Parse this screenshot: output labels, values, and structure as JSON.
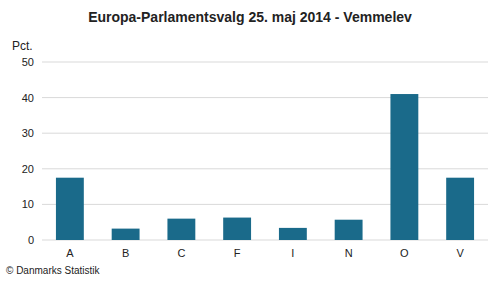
{
  "chart_data": {
    "type": "bar",
    "title": "Europa-Parlamentsvalg 25. maj 2014 - Vemmelev",
    "ylabel": "Pct.",
    "footer": "© Danmarks Statistik",
    "categories": [
      "A",
      "B",
      "C",
      "F",
      "I",
      "N",
      "O",
      "V"
    ],
    "values": [
      17.5,
      3.2,
      6.0,
      6.3,
      3.4,
      5.7,
      41.0,
      17.5
    ],
    "color": "#1a6a8a",
    "ylim": [
      0,
      50
    ],
    "yticks": [
      0,
      10,
      20,
      30,
      40,
      50
    ],
    "grid": true
  }
}
